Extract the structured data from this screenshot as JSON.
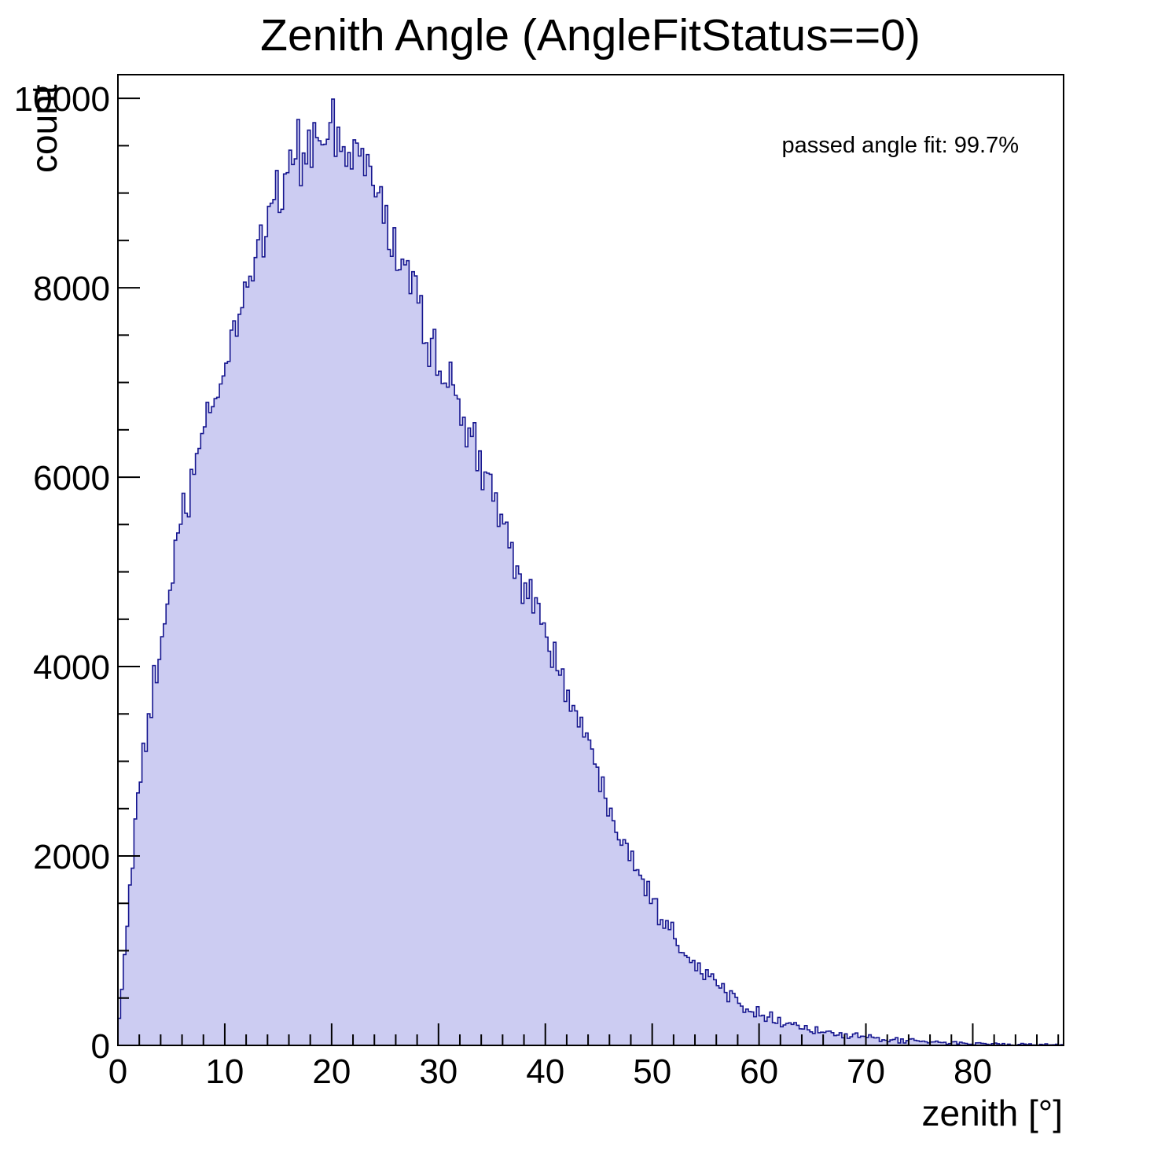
{
  "chart_data": {
    "type": "bar",
    "title": "Zenith Angle (AngleFitStatus==0)",
    "xlabel": "zenith [°]",
    "ylabel": "count",
    "annotation": "passed angle fit: 99.7%",
    "xlim": [
      0,
      88.5
    ],
    "ylim": [
      0,
      10250
    ],
    "x_ticks_major": [
      0,
      10,
      20,
      30,
      40,
      50,
      60,
      70,
      80
    ],
    "x_tick_minor_step": 2,
    "y_ticks_major": [
      0,
      2000,
      4000,
      6000,
      8000,
      10000
    ],
    "y_tick_minor_step": 500,
    "bin_width_deg": 0.25,
    "fill_color": "#ccccf2",
    "line_color": "#16168f",
    "frame_color": "#000000",
    "anchor_x_step": 1,
    "anchor_counts": [
      100,
      1500,
      2700,
      3500,
      4250,
      4900,
      5500,
      6000,
      6400,
      6800,
      7150,
      7600,
      8000,
      8400,
      8750,
      9000,
      9250,
      9450,
      9550,
      9500,
      9550,
      9450,
      9400,
      9400,
      9100,
      8700,
      8400,
      8200,
      7900,
      7500,
      7250,
      7000,
      6700,
      6400,
      6100,
      5800,
      5500,
      5200,
      4950,
      4700,
      4350,
      4050,
      3750,
      3450,
      3150,
      2850,
      2550,
      2300,
      2050,
      1800,
      1550,
      1350,
      1180,
      1020,
      880,
      760,
      650,
      560,
      480,
      410,
      350,
      300,
      260,
      225,
      195,
      165,
      140,
      120,
      105,
      92,
      80,
      70,
      60,
      52,
      46,
      40,
      35,
      30,
      26,
      22,
      19,
      16,
      14,
      12,
      10,
      9,
      8,
      6,
      5
    ]
  }
}
